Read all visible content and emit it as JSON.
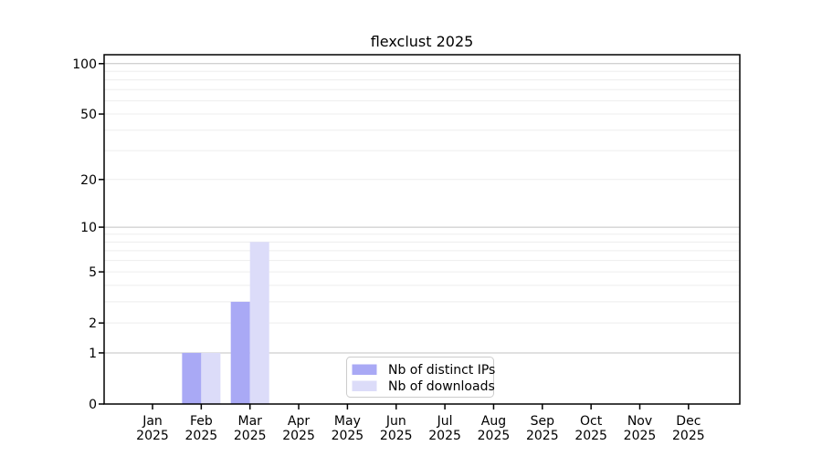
{
  "chart_data": {
    "type": "bar",
    "title": "flexclust 2025",
    "categories": [
      "Jan",
      "Feb",
      "Mar",
      "Apr",
      "May",
      "Jun",
      "Jul",
      "Aug",
      "Sep",
      "Oct",
      "Nov",
      "Dec"
    ],
    "category_year": "2025",
    "series": [
      {
        "name": "Nb of distinct IPs",
        "color": "#a9a9f5",
        "values": [
          0,
          1,
          3,
          0,
          0,
          0,
          0,
          0,
          0,
          0,
          0,
          0
        ]
      },
      {
        "name": "Nb of downloads",
        "color": "#dcdcf9",
        "values": [
          0,
          1,
          8,
          0,
          0,
          0,
          0,
          0,
          0,
          0,
          0,
          0
        ]
      }
    ],
    "y_axis": {
      "scale": "log1p",
      "ylim": [
        0,
        113
      ],
      "tick_values": [
        0,
        1,
        2,
        5,
        10,
        20,
        50,
        100
      ],
      "major_gridlines": [
        1,
        10,
        100
      ],
      "minor_gridlines": [
        2,
        3,
        4,
        5,
        6,
        7,
        8,
        9,
        20,
        30,
        40,
        50,
        60,
        70,
        80,
        90
      ]
    },
    "legend": {
      "position": "lower center inside",
      "entries": [
        "Nb of distinct IPs",
        "Nb of downloads"
      ]
    },
    "grid": "on"
  },
  "colors": {
    "background": "#ffffff",
    "axis": "#000000",
    "text": "#000000",
    "grid_major": "#c2c2c2",
    "grid_minor": "#ededed",
    "legend_border": "#cccccc",
    "legend_background": "#ffffff"
  }
}
